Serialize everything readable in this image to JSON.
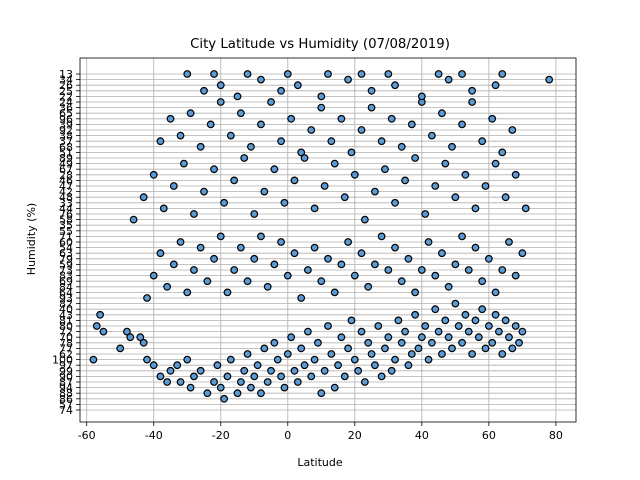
{
  "chart_data": {
    "type": "scatter",
    "title": "City Latitude vs Humidity (07/08/2019)",
    "xlabel": "Latitude",
    "ylabel": "Humidity (%)",
    "xlim": [
      -62,
      86
    ],
    "x_ticks": [
      -60,
      -40,
      -20,
      0,
      20,
      40,
      60,
      80
    ],
    "y_axis": "categorical",
    "y_categories_bottom_to_top": [
      "74",
      "57",
      "86",
      "88",
      "94",
      "87",
      "90",
      "99",
      "97",
      "100",
      "62",
      "77",
      "78",
      "70",
      "72",
      "80",
      "81",
      "43",
      "40",
      "82",
      "93",
      "64",
      "84",
      "69",
      "83",
      "73",
      "59",
      "79",
      "63",
      "54",
      "60",
      "71",
      "55",
      "35",
      "58",
      "76",
      "44",
      "33",
      "48",
      "42",
      "47",
      "46",
      "28",
      "67",
      "49",
      "89",
      "51",
      "68",
      "37",
      "38",
      "92",
      "39",
      "96",
      "65",
      "36",
      "24",
      "22",
      "25",
      "26",
      "34",
      "13"
    ],
    "grid": true,
    "marker_color": "#5b9bd5",
    "marker_edge": "#000000",
    "points": [
      [
        -58,
        9
      ],
      [
        -57,
        15
      ],
      [
        -56,
        17
      ],
      [
        -55,
        14
      ],
      [
        -50,
        11
      ],
      [
        -48,
        14
      ],
      [
        -47,
        13
      ],
      [
        -44,
        13
      ],
      [
        -43,
        12
      ],
      [
        -42,
        9
      ],
      [
        -40,
        8
      ],
      [
        -38,
        6
      ],
      [
        -36,
        5
      ],
      [
        -35,
        7
      ],
      [
        -33,
        8
      ],
      [
        -32,
        5
      ],
      [
        -30,
        9
      ],
      [
        -29,
        4
      ],
      [
        -28,
        6
      ],
      [
        -26,
        7
      ],
      [
        -24,
        3
      ],
      [
        -22,
        5
      ],
      [
        -21,
        8
      ],
      [
        -20,
        4
      ],
      [
        -19,
        2
      ],
      [
        -18,
        6
      ],
      [
        -17,
        9
      ],
      [
        -15,
        3
      ],
      [
        -14,
        5
      ],
      [
        -13,
        7
      ],
      [
        -12,
        10
      ],
      [
        -11,
        4
      ],
      [
        -10,
        6
      ],
      [
        -9,
        8
      ],
      [
        -8,
        3
      ],
      [
        -7,
        11
      ],
      [
        -6,
        5
      ],
      [
        -5,
        7
      ],
      [
        -4,
        12
      ],
      [
        -3,
        9
      ],
      [
        -2,
        6
      ],
      [
        -1,
        4
      ],
      [
        0,
        10
      ],
      [
        1,
        13
      ],
      [
        2,
        7
      ],
      [
        3,
        5
      ],
      [
        4,
        11
      ],
      [
        5,
        8
      ],
      [
        6,
        14
      ],
      [
        7,
        6
      ],
      [
        8,
        9
      ],
      [
        9,
        12
      ],
      [
        10,
        3
      ],
      [
        11,
        7
      ],
      [
        12,
        15
      ],
      [
        13,
        10
      ],
      [
        14,
        4
      ],
      [
        15,
        8
      ],
      [
        16,
        13
      ],
      [
        17,
        6
      ],
      [
        18,
        11
      ],
      [
        19,
        16
      ],
      [
        20,
        9
      ],
      [
        21,
        7
      ],
      [
        22,
        14
      ],
      [
        23,
        5
      ],
      [
        24,
        12
      ],
      [
        25,
        10
      ],
      [
        26,
        8
      ],
      [
        27,
        15
      ],
      [
        28,
        6
      ],
      [
        29,
        11
      ],
      [
        30,
        13
      ],
      [
        31,
        7
      ],
      [
        32,
        9
      ],
      [
        33,
        16
      ],
      [
        34,
        12
      ],
      [
        35,
        14
      ],
      [
        36,
        8
      ],
      [
        37,
        10
      ],
      [
        38,
        17
      ],
      [
        39,
        11
      ],
      [
        40,
        13
      ],
      [
        41,
        15
      ],
      [
        42,
        9
      ],
      [
        43,
        12
      ],
      [
        44,
        18
      ],
      [
        45,
        14
      ],
      [
        46,
        10
      ],
      [
        47,
        16
      ],
      [
        48,
        13
      ],
      [
        49,
        11
      ],
      [
        50,
        19
      ],
      [
        51,
        15
      ],
      [
        52,
        12
      ],
      [
        53,
        17
      ],
      [
        54,
        14
      ],
      [
        55,
        10
      ],
      [
        56,
        16
      ],
      [
        57,
        13
      ],
      [
        58,
        18
      ],
      [
        59,
        11
      ],
      [
        60,
        15
      ],
      [
        61,
        12
      ],
      [
        62,
        17
      ],
      [
        63,
        14
      ],
      [
        64,
        10
      ],
      [
        65,
        16
      ],
      [
        66,
        13
      ],
      [
        67,
        11
      ],
      [
        68,
        15
      ],
      [
        69,
        12
      ],
      [
        70,
        14
      ],
      [
        -42,
        20
      ],
      [
        -40,
        24
      ],
      [
        -38,
        28
      ],
      [
        -36,
        22
      ],
      [
        -34,
        26
      ],
      [
        -32,
        30
      ],
      [
        -30,
        21
      ],
      [
        -28,
        25
      ],
      [
        -26,
        29
      ],
      [
        -24,
        23
      ],
      [
        -22,
        27
      ],
      [
        -20,
        31
      ],
      [
        -18,
        21
      ],
      [
        -16,
        25
      ],
      [
        -14,
        29
      ],
      [
        -12,
        23
      ],
      [
        -10,
        27
      ],
      [
        -8,
        31
      ],
      [
        -6,
        22
      ],
      [
        -4,
        26
      ],
      [
        -2,
        30
      ],
      [
        0,
        24
      ],
      [
        2,
        28
      ],
      [
        4,
        20
      ],
      [
        6,
        25
      ],
      [
        8,
        29
      ],
      [
        10,
        23
      ],
      [
        12,
        27
      ],
      [
        14,
        21
      ],
      [
        16,
        26
      ],
      [
        18,
        30
      ],
      [
        20,
        24
      ],
      [
        22,
        28
      ],
      [
        24,
        22
      ],
      [
        26,
        26
      ],
      [
        28,
        31
      ],
      [
        30,
        25
      ],
      [
        32,
        29
      ],
      [
        34,
        23
      ],
      [
        36,
        27
      ],
      [
        38,
        21
      ],
      [
        40,
        25
      ],
      [
        42,
        30
      ],
      [
        44,
        24
      ],
      [
        46,
        28
      ],
      [
        48,
        22
      ],
      [
        50,
        26
      ],
      [
        52,
        31
      ],
      [
        54,
        25
      ],
      [
        56,
        29
      ],
      [
        58,
        23
      ],
      [
        60,
        27
      ],
      [
        62,
        21
      ],
      [
        64,
        25
      ],
      [
        66,
        30
      ],
      [
        68,
        24
      ],
      [
        70,
        28
      ],
      [
        -46,
        34
      ],
      [
        -43,
        38
      ],
      [
        -40,
        42
      ],
      [
        -37,
        36
      ],
      [
        -34,
        40
      ],
      [
        -31,
        44
      ],
      [
        -28,
        35
      ],
      [
        -25,
        39
      ],
      [
        -22,
        43
      ],
      [
        -19,
        37
      ],
      [
        -16,
        41
      ],
      [
        -13,
        45
      ],
      [
        -10,
        35
      ],
      [
        -7,
        39
      ],
      [
        -4,
        43
      ],
      [
        -1,
        37
      ],
      [
        2,
        41
      ],
      [
        5,
        45
      ],
      [
        8,
        36
      ],
      [
        11,
        40
      ],
      [
        14,
        44
      ],
      [
        17,
        38
      ],
      [
        20,
        42
      ],
      [
        23,
        34
      ],
      [
        26,
        39
      ],
      [
        29,
        43
      ],
      [
        32,
        37
      ],
      [
        35,
        41
      ],
      [
        38,
        45
      ],
      [
        41,
        35
      ],
      [
        44,
        40
      ],
      [
        47,
        44
      ],
      [
        50,
        38
      ],
      [
        53,
        42
      ],
      [
        56,
        36
      ],
      [
        59,
        40
      ],
      [
        62,
        44
      ],
      [
        65,
        38
      ],
      [
        68,
        42
      ],
      [
        71,
        36
      ],
      [
        -38,
        48
      ],
      [
        -35,
        52
      ],
      [
        -32,
        49
      ],
      [
        -29,
        53
      ],
      [
        -26,
        47
      ],
      [
        -23,
        51
      ],
      [
        -20,
        55
      ],
      [
        -17,
        49
      ],
      [
        -14,
        53
      ],
      [
        -11,
        47
      ],
      [
        -8,
        51
      ],
      [
        -5,
        55
      ],
      [
        -2,
        48
      ],
      [
        1,
        52
      ],
      [
        4,
        46
      ],
      [
        7,
        50
      ],
      [
        10,
        54
      ],
      [
        13,
        48
      ],
      [
        16,
        52
      ],
      [
        19,
        46
      ],
      [
        22,
        50
      ],
      [
        25,
        54
      ],
      [
        28,
        48
      ],
      [
        31,
        52
      ],
      [
        34,
        47
      ],
      [
        37,
        51
      ],
      [
        40,
        55
      ],
      [
        43,
        49
      ],
      [
        46,
        53
      ],
      [
        49,
        47
      ],
      [
        52,
        51
      ],
      [
        55,
        55
      ],
      [
        58,
        48
      ],
      [
        61,
        52
      ],
      [
        64,
        46
      ],
      [
        67,
        50
      ],
      [
        -25,
        57
      ],
      [
        -20,
        58
      ],
      [
        -15,
        56
      ],
      [
        -8,
        59
      ],
      [
        -2,
        57
      ],
      [
        3,
        58
      ],
      [
        10,
        56
      ],
      [
        18,
        59
      ],
      [
        25,
        57
      ],
      [
        32,
        58
      ],
      [
        40,
        56
      ],
      [
        48,
        59
      ],
      [
        55,
        57
      ],
      [
        62,
        58
      ],
      [
        78,
        59
      ],
      [
        -30,
        60
      ],
      [
        -22,
        60
      ],
      [
        -12,
        60
      ],
      [
        0,
        60
      ],
      [
        12,
        60
      ],
      [
        22,
        60
      ],
      [
        30,
        60
      ],
      [
        45,
        60
      ],
      [
        52,
        60
      ],
      [
        64,
        60
      ]
    ]
  }
}
